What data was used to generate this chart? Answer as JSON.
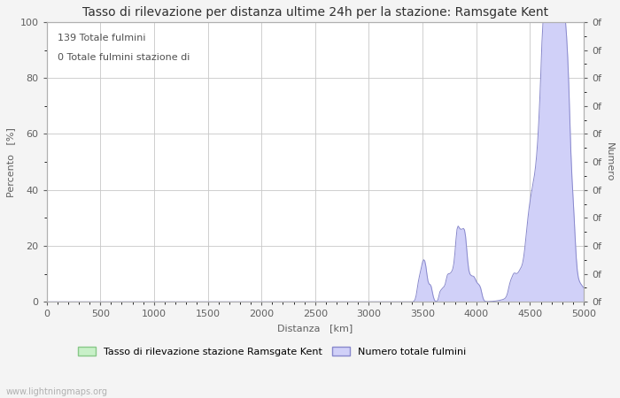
{
  "title": "Tasso di rilevazione per distanza ultime 24h per la stazione: Ramsgate Kent",
  "xlabel": "Distanza   [km]",
  "ylabel_left": "Percento   [%]",
  "ylabel_right": "Numero",
  "annotation_line1": "139 Totale fulmini",
  "annotation_line2": "0 Totale fulmini stazione di",
  "watermark": "www.lightningmaps.org",
  "legend_label_green": "Tasso di rilevazione stazione Ramsgate Kent",
  "legend_label_blue": "Numero totale fulmini",
  "xlim": [
    0,
    5000
  ],
  "ylim_left": [
    0,
    100
  ],
  "color_blue_fill": "#d0d0f8",
  "color_blue_line": "#8888cc",
  "color_green_fill": "#c8f0c8",
  "color_green_line": "#88c888",
  "background_color": "#f4f4f4",
  "plot_bg_color": "#ffffff",
  "grid_color": "#c8c8c8",
  "title_fontsize": 10,
  "axis_label_fontsize": 8,
  "tick_fontsize": 8,
  "annotation_fontsize": 8
}
